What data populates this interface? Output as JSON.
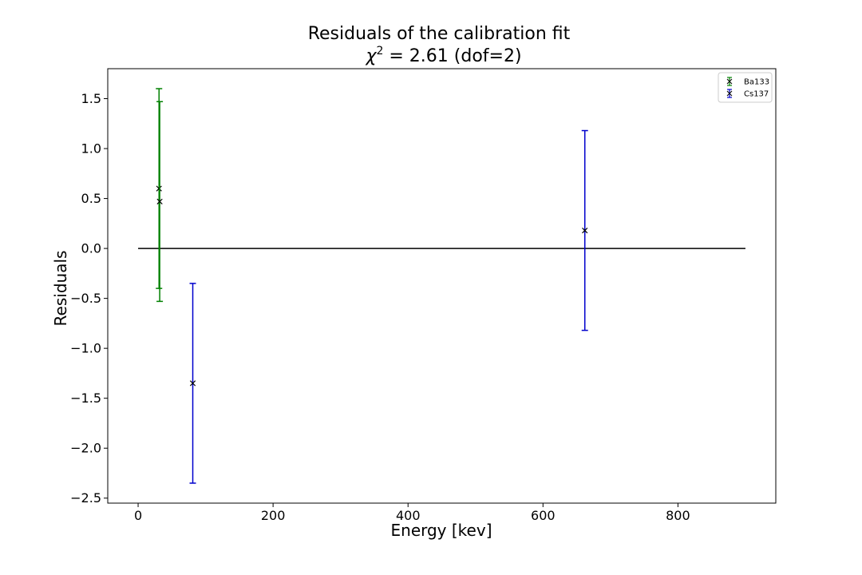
{
  "chart_data": {
    "type": "scatter",
    "title": "Residuals of the calibration fit",
    "subtitle": {
      "symbol": "χ",
      "exponent": "2",
      "text": " = 2.61 (dof=2)"
    },
    "xlabel": "Energy [kev]",
    "ylabel": "Residuals",
    "xlim": [
      -45,
      945
    ],
    "ylim": [
      -2.55,
      1.8
    ],
    "xticks": [
      0,
      200,
      400,
      600,
      800
    ],
    "yticks": [
      -2.5,
      -2.0,
      -1.5,
      -1.0,
      -0.5,
      0.0,
      0.5,
      1.0,
      1.5
    ],
    "ytick_labels": [
      "−2.5",
      "−2.0",
      "−1.5",
      "−1.0",
      "−0.5",
      "0.0",
      "0.5",
      "1.0",
      "1.5"
    ],
    "reference_line": {
      "x": [
        0,
        900
      ],
      "y": 0,
      "color": "#000000"
    },
    "marker": "x",
    "marker_color": "#000000",
    "legend_position": "top-right",
    "series": [
      {
        "name": "Ba133",
        "color": "#008000",
        "points": [
          {
            "x": 31,
            "y": 0.6,
            "err": 1.0
          },
          {
            "x": 32,
            "y": 0.47,
            "err": 1.0
          }
        ]
      },
      {
        "name": "Cs137",
        "color": "#0000cc",
        "points": [
          {
            "x": 81,
            "y": -1.35,
            "err": 1.0
          },
          {
            "x": 662,
            "y": 0.18,
            "err": 1.0
          }
        ]
      }
    ]
  }
}
